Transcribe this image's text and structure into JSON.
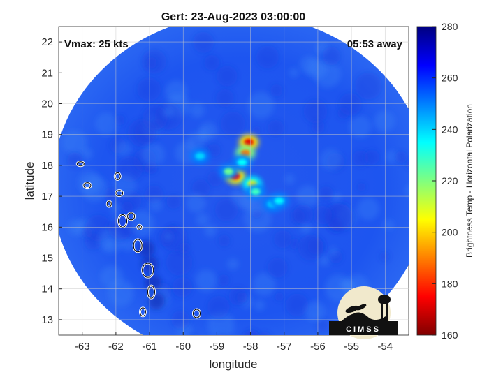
{
  "chart_data": {
    "type": "heatmap",
    "title": "Gert: 23-Aug-2023 03:00:00",
    "annotations": {
      "left": "Vmax: 25 kts",
      "right": "05:53 away"
    },
    "xlabel": "longitude",
    "ylabel": "latitude",
    "xlim": [
      -63.7,
      -53.3
    ],
    "ylim": [
      12.5,
      22.5
    ],
    "xticks": [
      -63,
      -62,
      -61,
      -60,
      -59,
      -58,
      -57,
      -56,
      -55,
      -54
    ],
    "yticks": [
      13,
      14,
      15,
      16,
      17,
      18,
      19,
      20,
      21,
      22
    ],
    "grid": true,
    "colormap": "jet",
    "colorbar": {
      "label": "Brightness Temp - Horizontal Polarization",
      "range": [
        160,
        280
      ],
      "ticks": [
        160,
        180,
        200,
        220,
        240,
        260,
        280
      ]
    },
    "swath": {
      "center": [
        -58.3,
        17.3
      ],
      "radius_deg": 5.6
    },
    "background_value": 262,
    "features": [
      {
        "lon": -58.05,
        "lat": 18.75,
        "value": 172
      },
      {
        "lon": -58.15,
        "lat": 18.4,
        "value": 190
      },
      {
        "lon": -58.45,
        "lat": 17.65,
        "value": 175
      },
      {
        "lon": -58.65,
        "lat": 17.8,
        "value": 222
      },
      {
        "lon": -58.25,
        "lat": 18.1,
        "value": 235
      },
      {
        "lon": -57.95,
        "lat": 17.4,
        "value": 205
      },
      {
        "lon": -57.85,
        "lat": 17.15,
        "value": 228
      },
      {
        "lon": -57.35,
        "lat": 16.75,
        "value": 238
      },
      {
        "lon": -57.15,
        "lat": 16.85,
        "value": 236
      },
      {
        "lon": -59.5,
        "lat": 18.3,
        "value": 240
      }
    ],
    "logo_text": "CIMSS"
  }
}
